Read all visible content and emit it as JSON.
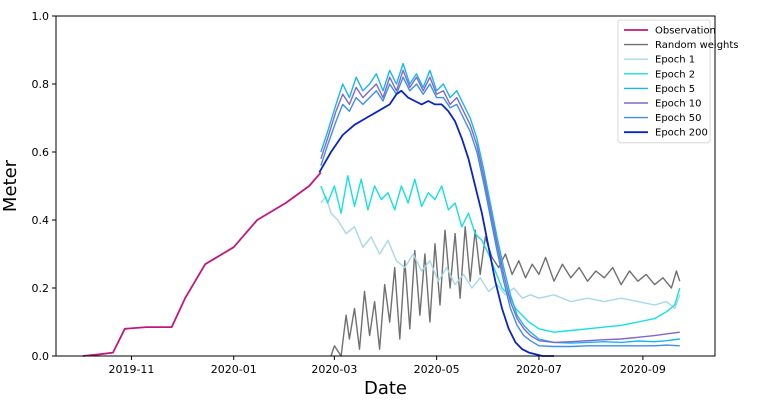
{
  "chart_data": {
    "type": "line",
    "title": "",
    "xlabel": "Date",
    "ylabel": "Meter",
    "xlim": [
      "2019-09-17",
      "2020-10-14"
    ],
    "ylim": [
      0,
      1.0
    ],
    "x_ticks": [
      {
        "date": "2019-11-01",
        "label": "2019-11"
      },
      {
        "date": "2020-01-01",
        "label": "2020-01"
      },
      {
        "date": "2020-03-01",
        "label": "2020-03"
      },
      {
        "date": "2020-05-01",
        "label": "2020-05"
      },
      {
        "date": "2020-07-01",
        "label": "2020-07"
      },
      {
        "date": "2020-09-01",
        "label": "2020-09"
      }
    ],
    "y_ticks": [
      0.0,
      0.2,
      0.4,
      0.6,
      0.8,
      1.0
    ],
    "y_tick_labels": [
      "0.0",
      "0.2",
      "0.4",
      "0.6",
      "0.8",
      "1.0"
    ],
    "grid": false,
    "legend_position": "top-right",
    "series": [
      {
        "name": "Observation",
        "color": "#c2187a",
        "width": 1.8,
        "x": [
          "2019-10-03",
          "2019-10-13",
          "2019-10-21",
          "2019-10-28",
          "2019-11-10",
          "2019-11-25",
          "2019-12-03",
          "2019-12-15",
          "2020-01-01",
          "2020-01-15",
          "2020-02-01",
          "2020-02-15",
          "2020-02-22"
        ],
        "y": [
          0.0,
          0.005,
          0.01,
          0.08,
          0.085,
          0.085,
          0.17,
          0.27,
          0.32,
          0.4,
          0.45,
          0.5,
          0.54
        ]
      },
      {
        "name": "Random weights",
        "color": "#707070",
        "width": 1.4,
        "x": [
          "2020-02-28",
          "2020-03-01",
          "2020-03-05",
          "2020-03-08",
          "2020-03-10",
          "2020-03-13",
          "2020-03-16",
          "2020-03-19",
          "2020-03-22",
          "2020-03-25",
          "2020-03-28",
          "2020-03-31",
          "2020-04-03",
          "2020-04-06",
          "2020-04-09",
          "2020-04-12",
          "2020-04-15",
          "2020-04-18",
          "2020-04-21",
          "2020-04-24",
          "2020-04-27",
          "2020-04-30",
          "2020-05-03",
          "2020-05-06",
          "2020-05-09",
          "2020-05-12",
          "2020-05-15",
          "2020-05-18",
          "2020-05-21",
          "2020-05-24",
          "2020-05-27",
          "2020-05-30",
          "2020-06-03",
          "2020-06-07",
          "2020-06-11",
          "2020-06-15",
          "2020-06-19",
          "2020-06-23",
          "2020-06-27",
          "2020-07-01",
          "2020-07-05",
          "2020-07-10",
          "2020-07-15",
          "2020-07-20",
          "2020-07-25",
          "2020-07-30",
          "2020-08-04",
          "2020-08-09",
          "2020-08-14",
          "2020-08-19",
          "2020-08-24",
          "2020-08-29",
          "2020-09-03",
          "2020-09-08",
          "2020-09-13",
          "2020-09-18",
          "2020-09-21",
          "2020-09-23"
        ],
        "y": [
          0.0,
          0.03,
          0.0,
          0.12,
          0.05,
          0.14,
          0.02,
          0.19,
          0.06,
          0.16,
          0.02,
          0.21,
          0.1,
          0.26,
          0.05,
          0.28,
          0.08,
          0.31,
          0.12,
          0.3,
          0.1,
          0.33,
          0.15,
          0.37,
          0.2,
          0.36,
          0.17,
          0.38,
          0.22,
          0.37,
          0.24,
          0.35,
          0.29,
          0.26,
          0.3,
          0.24,
          0.28,
          0.23,
          0.27,
          0.24,
          0.29,
          0.22,
          0.27,
          0.23,
          0.26,
          0.22,
          0.25,
          0.23,
          0.26,
          0.21,
          0.25,
          0.22,
          0.24,
          0.21,
          0.23,
          0.2,
          0.25,
          0.22
        ]
      },
      {
        "name": "Epoch 1",
        "color": "#a8d8ea",
        "width": 1.4,
        "x": [
          "2020-02-22",
          "2020-02-25",
          "2020-02-28",
          "2020-03-03",
          "2020-03-08",
          "2020-03-13",
          "2020-03-18",
          "2020-03-23",
          "2020-03-28",
          "2020-04-02",
          "2020-04-07",
          "2020-04-12",
          "2020-04-17",
          "2020-04-22",
          "2020-04-27",
          "2020-05-02",
          "2020-05-07",
          "2020-05-12",
          "2020-05-17",
          "2020-05-22",
          "2020-05-27",
          "2020-06-01",
          "2020-06-06",
          "2020-06-11",
          "2020-06-16",
          "2020-06-21",
          "2020-06-26",
          "2020-07-01",
          "2020-07-10",
          "2020-07-20",
          "2020-07-30",
          "2020-08-09",
          "2020-08-19",
          "2020-08-29",
          "2020-09-08",
          "2020-09-15",
          "2020-09-20",
          "2020-09-23"
        ],
        "y": [
          0.45,
          0.47,
          0.42,
          0.4,
          0.36,
          0.38,
          0.32,
          0.35,
          0.3,
          0.34,
          0.28,
          0.26,
          0.3,
          0.25,
          0.28,
          0.22,
          0.26,
          0.21,
          0.24,
          0.2,
          0.23,
          0.19,
          0.21,
          0.18,
          0.2,
          0.17,
          0.18,
          0.17,
          0.18,
          0.16,
          0.17,
          0.16,
          0.17,
          0.16,
          0.15,
          0.16,
          0.14,
          0.18
        ]
      },
      {
        "name": "Epoch 2",
        "color": "#17e0e0",
        "width": 1.4,
        "x": [
          "2020-02-22",
          "2020-02-26",
          "2020-03-01",
          "2020-03-05",
          "2020-03-09",
          "2020-03-13",
          "2020-03-17",
          "2020-03-21",
          "2020-03-25",
          "2020-03-29",
          "2020-04-02",
          "2020-04-06",
          "2020-04-10",
          "2020-04-14",
          "2020-04-18",
          "2020-04-22",
          "2020-04-26",
          "2020-04-30",
          "2020-05-04",
          "2020-05-08",
          "2020-05-12",
          "2020-05-16",
          "2020-05-20",
          "2020-05-24",
          "2020-05-28",
          "2020-06-01",
          "2020-06-05",
          "2020-06-09",
          "2020-06-13",
          "2020-06-17",
          "2020-06-21",
          "2020-06-25",
          "2020-07-01",
          "2020-07-10",
          "2020-07-20",
          "2020-07-30",
          "2020-08-09",
          "2020-08-19",
          "2020-08-29",
          "2020-09-08",
          "2020-09-15",
          "2020-09-20",
          "2020-09-23"
        ],
        "y": [
          0.5,
          0.45,
          0.5,
          0.42,
          0.53,
          0.44,
          0.52,
          0.43,
          0.5,
          0.46,
          0.48,
          0.43,
          0.5,
          0.45,
          0.52,
          0.44,
          0.48,
          0.46,
          0.5,
          0.43,
          0.45,
          0.38,
          0.42,
          0.36,
          0.34,
          0.3,
          0.25,
          0.2,
          0.18,
          0.14,
          0.12,
          0.1,
          0.08,
          0.07,
          0.075,
          0.08,
          0.085,
          0.09,
          0.1,
          0.11,
          0.13,
          0.15,
          0.2
        ]
      },
      {
        "name": "Epoch 5",
        "color": "#19b5f2",
        "width": 1.4,
        "x": [
          "2020-02-22",
          "2020-02-26",
          "2020-03-02",
          "2020-03-06",
          "2020-03-10",
          "2020-03-14",
          "2020-03-18",
          "2020-03-22",
          "2020-03-26",
          "2020-03-30",
          "2020-04-03",
          "2020-04-07",
          "2020-04-11",
          "2020-04-15",
          "2020-04-19",
          "2020-04-23",
          "2020-04-27",
          "2020-05-01",
          "2020-05-05",
          "2020-05-09",
          "2020-05-13",
          "2020-05-17",
          "2020-05-21",
          "2020-05-25",
          "2020-05-29",
          "2020-06-02",
          "2020-06-06",
          "2020-06-10",
          "2020-06-14",
          "2020-06-18",
          "2020-06-22",
          "2020-06-26",
          "2020-07-01",
          "2020-07-10",
          "2020-07-20",
          "2020-07-30",
          "2020-08-09",
          "2020-08-19",
          "2020-08-29",
          "2020-09-08",
          "2020-09-15",
          "2020-09-23"
        ],
        "y": [
          0.6,
          0.66,
          0.74,
          0.8,
          0.76,
          0.82,
          0.78,
          0.8,
          0.83,
          0.78,
          0.84,
          0.8,
          0.86,
          0.8,
          0.83,
          0.79,
          0.84,
          0.78,
          0.8,
          0.76,
          0.78,
          0.74,
          0.7,
          0.64,
          0.55,
          0.45,
          0.35,
          0.26,
          0.18,
          0.12,
          0.09,
          0.07,
          0.05,
          0.04,
          0.038,
          0.04,
          0.042,
          0.04,
          0.044,
          0.042,
          0.045,
          0.05
        ]
      },
      {
        "name": "Epoch 10",
        "color": "#8466c8",
        "width": 1.4,
        "x": [
          "2020-02-22",
          "2020-02-26",
          "2020-03-02",
          "2020-03-06",
          "2020-03-10",
          "2020-03-14",
          "2020-03-18",
          "2020-03-22",
          "2020-03-26",
          "2020-03-30",
          "2020-04-03",
          "2020-04-07",
          "2020-04-11",
          "2020-04-15",
          "2020-04-19",
          "2020-04-23",
          "2020-04-27",
          "2020-05-01",
          "2020-05-05",
          "2020-05-09",
          "2020-05-13",
          "2020-05-17",
          "2020-05-21",
          "2020-05-25",
          "2020-05-29",
          "2020-06-02",
          "2020-06-06",
          "2020-06-10",
          "2020-06-14",
          "2020-06-18",
          "2020-06-22",
          "2020-06-26",
          "2020-07-01",
          "2020-07-10",
          "2020-07-20",
          "2020-07-30",
          "2020-08-09",
          "2020-08-19",
          "2020-08-29",
          "2020-09-08",
          "2020-09-15",
          "2020-09-23"
        ],
        "y": [
          0.58,
          0.64,
          0.72,
          0.77,
          0.74,
          0.79,
          0.76,
          0.78,
          0.8,
          0.76,
          0.82,
          0.78,
          0.84,
          0.79,
          0.82,
          0.78,
          0.82,
          0.77,
          0.78,
          0.74,
          0.76,
          0.72,
          0.68,
          0.62,
          0.53,
          0.43,
          0.33,
          0.24,
          0.16,
          0.11,
          0.08,
          0.06,
          0.045,
          0.04,
          0.042,
          0.045,
          0.048,
          0.05,
          0.055,
          0.06,
          0.065,
          0.07
        ]
      },
      {
        "name": "Epoch 50",
        "color": "#3d8fe6",
        "width": 1.4,
        "x": [
          "2020-02-22",
          "2020-02-26",
          "2020-03-02",
          "2020-03-06",
          "2020-03-10",
          "2020-03-14",
          "2020-03-18",
          "2020-03-22",
          "2020-03-26",
          "2020-03-30",
          "2020-04-03",
          "2020-04-07",
          "2020-04-11",
          "2020-04-15",
          "2020-04-19",
          "2020-04-23",
          "2020-04-27",
          "2020-05-01",
          "2020-05-05",
          "2020-05-09",
          "2020-05-13",
          "2020-05-17",
          "2020-05-21",
          "2020-05-25",
          "2020-05-29",
          "2020-06-02",
          "2020-06-06",
          "2020-06-10",
          "2020-06-14",
          "2020-06-18",
          "2020-06-22",
          "2020-06-26",
          "2020-07-01",
          "2020-07-10",
          "2020-07-20",
          "2020-07-30",
          "2020-08-09",
          "2020-08-19",
          "2020-08-29",
          "2020-09-08",
          "2020-09-15",
          "2020-09-23"
        ],
        "y": [
          0.56,
          0.62,
          0.69,
          0.74,
          0.72,
          0.76,
          0.74,
          0.76,
          0.78,
          0.75,
          0.8,
          0.77,
          0.82,
          0.78,
          0.8,
          0.77,
          0.8,
          0.76,
          0.76,
          0.73,
          0.74,
          0.7,
          0.66,
          0.6,
          0.51,
          0.41,
          0.31,
          0.22,
          0.14,
          0.09,
          0.06,
          0.045,
          0.03,
          0.028,
          0.028,
          0.03,
          0.03,
          0.03,
          0.03,
          0.03,
          0.032,
          0.03
        ]
      },
      {
        "name": "Epoch 200",
        "color": "#0b24c4",
        "width": 1.8,
        "x": [
          "2020-02-21",
          "2020-02-28",
          "2020-03-06",
          "2020-03-13",
          "2020-03-20",
          "2020-03-27",
          "2020-04-03",
          "2020-04-07",
          "2020-04-10",
          "2020-04-14",
          "2020-04-18",
          "2020-04-22",
          "2020-04-26",
          "2020-04-30",
          "2020-05-04",
          "2020-05-08",
          "2020-05-12",
          "2020-05-16",
          "2020-05-20",
          "2020-05-24",
          "2020-05-28",
          "2020-06-01",
          "2020-06-05",
          "2020-06-09",
          "2020-06-13",
          "2020-06-17",
          "2020-06-21",
          "2020-06-25",
          "2020-06-29",
          "2020-07-03",
          "2020-07-10"
        ],
        "y": [
          0.54,
          0.6,
          0.65,
          0.68,
          0.7,
          0.72,
          0.74,
          0.77,
          0.78,
          0.76,
          0.75,
          0.74,
          0.75,
          0.74,
          0.74,
          0.72,
          0.69,
          0.64,
          0.58,
          0.5,
          0.42,
          0.32,
          0.22,
          0.14,
          0.08,
          0.04,
          0.02,
          0.01,
          0.005,
          0.0,
          0.0
        ]
      }
    ]
  }
}
